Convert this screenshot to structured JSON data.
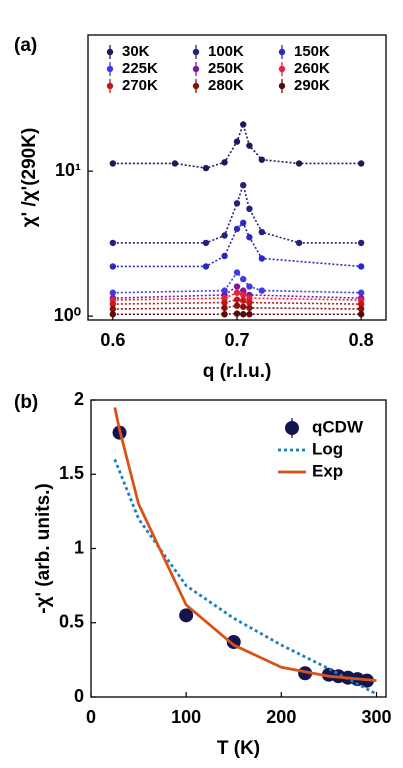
{
  "chart_data": [
    {
      "type": "scatter",
      "label": "(a)",
      "xlabel": "q (r.l.u.)",
      "ylabel": "χ' /χ'(290K)",
      "xlim": [
        0.58,
        0.82
      ],
      "xticks": [
        0.6,
        0.7,
        0.8
      ],
      "ylim": [
        0.94,
        87
      ],
      "yticks": [
        {
          "value": 1,
          "label": "10⁰"
        },
        {
          "value": 10,
          "label": "10¹"
        }
      ],
      "ylog": true,
      "legend": "top",
      "series": [
        {
          "name": "30K",
          "color": "#1b1b5c",
          "marker": true,
          "line": "dotted",
          "x": [
            0.6,
            0.65,
            0.675,
            0.69,
            0.7,
            0.705,
            0.71,
            0.72,
            0.75,
            0.8
          ],
          "values": [
            11.3,
            11.3,
            10.5,
            11.5,
            16,
            21,
            15,
            12,
            11.3,
            11.3
          ]
        },
        {
          "name": "100K",
          "color": "#22227a",
          "marker": true,
          "line": "dotted",
          "x": [
            0.6,
            0.675,
            0.69,
            0.7,
            0.705,
            0.71,
            0.72,
            0.75,
            0.8
          ],
          "values": [
            3.2,
            3.2,
            3.6,
            6,
            8,
            5.5,
            3.8,
            3.2,
            3.2
          ]
        },
        {
          "name": "150K",
          "color": "#2a2ac0",
          "marker": true,
          "line": "dotted",
          "x": [
            0.6,
            0.675,
            0.69,
            0.7,
            0.705,
            0.71,
            0.72,
            0.8
          ],
          "values": [
            2.2,
            2.2,
            2.6,
            4,
            4.4,
            3.5,
            2.5,
            2.2
          ]
        },
        {
          "name": "225K",
          "color": "#3c3ce6",
          "marker": true,
          "line": "dotted",
          "x": [
            0.6,
            0.69,
            0.7,
            0.705,
            0.71,
            0.72,
            0.8
          ],
          "values": [
            1.45,
            1.5,
            2.0,
            1.8,
            1.6,
            1.5,
            1.45
          ]
        },
        {
          "name": "250K",
          "color": "#7a1a9a",
          "marker": true,
          "line": "dotted",
          "x": [
            0.6,
            0.69,
            0.7,
            0.705,
            0.71,
            0.8
          ],
          "values": [
            1.33,
            1.4,
            1.6,
            1.5,
            1.4,
            1.33
          ]
        },
        {
          "name": "260K",
          "color": "#e8203a",
          "marker": true,
          "line": "dotted",
          "x": [
            0.6,
            0.69,
            0.7,
            0.705,
            0.71,
            0.8
          ],
          "values": [
            1.29,
            1.33,
            1.45,
            1.4,
            1.33,
            1.29
          ]
        },
        {
          "name": "270K",
          "color": "#c41818",
          "marker": true,
          "line": "dotted",
          "x": [
            0.6,
            0.69,
            0.7,
            0.705,
            0.71,
            0.8
          ],
          "values": [
            1.21,
            1.24,
            1.3,
            1.28,
            1.24,
            1.21
          ]
        },
        {
          "name": "280K",
          "color": "#8a1010",
          "marker": true,
          "line": "dotted",
          "x": [
            0.6,
            0.69,
            0.7,
            0.705,
            0.71,
            0.8
          ],
          "values": [
            1.12,
            1.14,
            1.18,
            1.16,
            1.14,
            1.12
          ]
        },
        {
          "name": "290K",
          "color": "#5a0a0a",
          "marker": true,
          "line": "dotted",
          "x": [
            0.6,
            0.69,
            0.7,
            0.705,
            0.71,
            0.8
          ],
          "values": [
            1.03,
            1.03,
            1.04,
            1.03,
            1.03,
            1.03
          ]
        }
      ]
    },
    {
      "type": "scatter",
      "label": "(b)",
      "xlabel": "T (K)",
      "ylabel": "-χ' (arb. units.)",
      "xlim": [
        0,
        310
      ],
      "xticks": [
        0,
        100,
        200,
        300
      ],
      "ylim": [
        0,
        2
      ],
      "yticks": [
        0,
        0.5,
        1,
        1.5,
        2
      ],
      "legend": "upper right",
      "series": [
        {
          "name": "qCDW",
          "color": "#14144f",
          "marker": true,
          "x": [
            30,
            100,
            150,
            225,
            250,
            260,
            270,
            280,
            290
          ],
          "values": [
            1.78,
            0.55,
            0.37,
            0.16,
            0.15,
            0.14,
            0.13,
            0.12,
            0.11
          ]
        },
        {
          "name": "Log",
          "color": "#1a7fc0",
          "line": "dotted",
          "x": [
            25,
            50,
            100,
            150,
            200,
            250,
            300
          ],
          "values": [
            1.6,
            1.2,
            0.75,
            0.53,
            0.35,
            0.19,
            0.02
          ]
        },
        {
          "name": "Exp",
          "color": "#d95319",
          "line": "solid",
          "x": [
            25,
            30,
            50,
            100,
            150,
            200,
            250,
            300
          ],
          "values": [
            1.95,
            1.8,
            1.3,
            0.62,
            0.35,
            0.2,
            0.14,
            0.11
          ]
        }
      ]
    }
  ]
}
